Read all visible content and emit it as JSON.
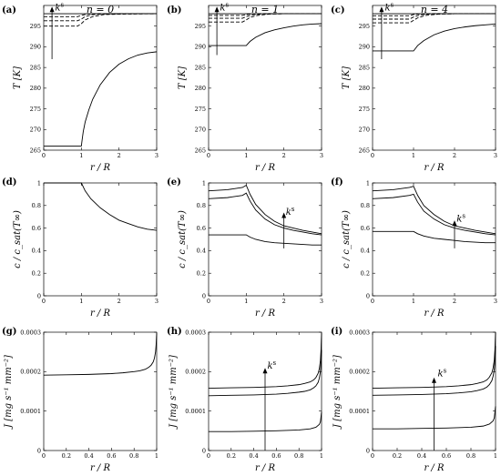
{
  "column_titles": [
    "n = 0",
    "n = 1",
    "n = 4"
  ],
  "row_ylabels": [
    "T [K]",
    "c / c_sat(T∞)",
    "J [mg s⁻¹ mm⁻²]"
  ],
  "row_xlabel": "r / R",
  "arrow_label": "k^s",
  "chart_data": [
    {
      "id": "a",
      "label": "(a)",
      "type": "line",
      "xlabel": "r / R",
      "ylabel": "T [K]",
      "xlim": [
        0,
        3
      ],
      "ylim": [
        265,
        300
      ],
      "xticks": [
        "0",
        "1",
        "2",
        "3"
      ],
      "yticks": [
        "265",
        "270",
        "275",
        "280",
        "285",
        "290",
        "295"
      ],
      "arrow": false,
      "series": [
        {
          "x": [
            0,
            1,
            1.02,
            1.05,
            1.1,
            1.2,
            1.3,
            1.5,
            1.75,
            2,
            2.25,
            2.5,
            2.75,
            3
          ],
          "y": [
            266,
            266,
            267.5,
            269.5,
            271.8,
            274.8,
            277.3,
            280.8,
            283.8,
            285.8,
            287.1,
            288.0,
            288.5,
            288.8
          ],
          "style": "solid"
        },
        {
          "x": [
            0,
            0.9,
            1,
            1.1,
            1.3,
            1.6,
            2,
            3
          ],
          "y": [
            295,
            295,
            295.6,
            296.5,
            297.3,
            297.8,
            297.9,
            298
          ],
          "style": "dashed"
        },
        {
          "x": [
            0,
            0.9,
            1,
            1.1,
            1.3,
            1.6,
            2,
            3
          ],
          "y": [
            296.3,
            296.3,
            296.7,
            297.3,
            297.8,
            297.95,
            298,
            298
          ],
          "style": "dashed"
        },
        {
          "x": [
            0,
            0.9,
            1,
            1.15,
            1.4,
            2,
            3
          ],
          "y": [
            297.3,
            297.3,
            297.6,
            297.9,
            298,
            298,
            298
          ],
          "style": "dashed"
        },
        {
          "x": [
            0,
            3
          ],
          "y": [
            298,
            298
          ],
          "style": "solid"
        }
      ]
    },
    {
      "id": "b",
      "label": "(b)",
      "type": "line",
      "xlabel": "r / R",
      "ylabel": "T [K]",
      "xlim": [
        0,
        3
      ],
      "ylim": [
        265,
        300
      ],
      "xticks": [
        "0",
        "1",
        "2",
        "3"
      ],
      "yticks": [
        "265",
        "270",
        "275",
        "280",
        "285",
        "290",
        "295"
      ],
      "arrow": false,
      "series": [
        {
          "x": [
            0,
            1,
            1.1,
            1.25,
            1.5,
            1.75,
            2,
            2.25,
            2.5,
            2.75,
            3
          ],
          "y": [
            290.3,
            290.3,
            291.3,
            292.3,
            293.4,
            294.1,
            294.6,
            295.0,
            295.3,
            295.5,
            295.6
          ],
          "style": "solid"
        },
        {
          "x": [
            0,
            0.9,
            1,
            1.1,
            1.3,
            1.6,
            2,
            3
          ],
          "y": [
            296,
            296,
            296.5,
            297.1,
            297.6,
            297.9,
            298,
            298
          ],
          "style": "dashed"
        },
        {
          "x": [
            0,
            0.9,
            1,
            1.15,
            1.4,
            2,
            3
          ],
          "y": [
            296.9,
            296.9,
            297.3,
            297.7,
            297.95,
            298,
            298
          ],
          "style": "dashed"
        },
        {
          "x": [
            0,
            0.9,
            1,
            1.15,
            1.4,
            2,
            3
          ],
          "y": [
            297.6,
            297.6,
            297.8,
            297.95,
            298,
            298,
            298
          ],
          "style": "dashed"
        },
        {
          "x": [
            0,
            3
          ],
          "y": [
            298,
            298
          ],
          "style": "solid"
        }
      ]
    },
    {
      "id": "c",
      "label": "(c)",
      "type": "line",
      "xlabel": "r / R",
      "ylabel": "T [K]",
      "xlim": [
        0,
        3
      ],
      "ylim": [
        265,
        300
      ],
      "xticks": [
        "0",
        "1",
        "2",
        "3"
      ],
      "yticks": [
        "265",
        "270",
        "275",
        "280",
        "285",
        "290",
        "295"
      ],
      "arrow": false,
      "series": [
        {
          "x": [
            0,
            1,
            1.1,
            1.25,
            1.5,
            1.75,
            2,
            2.25,
            2.5,
            2.75,
            3
          ],
          "y": [
            289,
            289,
            290.3,
            291.5,
            292.9,
            293.8,
            294.4,
            294.8,
            295.1,
            295.3,
            295.5
          ],
          "style": "solid"
        },
        {
          "x": [
            0,
            0.9,
            1,
            1.1,
            1.3,
            1.6,
            2,
            3
          ],
          "y": [
            295.8,
            295.8,
            296.4,
            297.0,
            297.6,
            297.9,
            298,
            298
          ],
          "style": "dashed"
        },
        {
          "x": [
            0,
            0.9,
            1,
            1.15,
            1.4,
            2,
            3
          ],
          "y": [
            296.7,
            296.7,
            297.2,
            297.7,
            297.95,
            298,
            298
          ],
          "style": "dashed"
        },
        {
          "x": [
            0,
            0.9,
            1,
            1.15,
            1.4,
            2,
            3
          ],
          "y": [
            297.5,
            297.5,
            297.8,
            297.95,
            298,
            298,
            298
          ],
          "style": "dashed"
        },
        {
          "x": [
            0,
            3
          ],
          "y": [
            298,
            298
          ],
          "style": "solid"
        }
      ]
    },
    {
      "id": "d",
      "label": "(d)",
      "type": "line",
      "xlabel": "r / R",
      "ylabel": "c / c_sat(T∞)",
      "xlim": [
        0,
        3
      ],
      "ylim": [
        0,
        1
      ],
      "xticks": [
        "0",
        "1",
        "2",
        "3"
      ],
      "yticks": [
        "0",
        "0.2",
        "0.4",
        "0.6",
        "0.8",
        "1"
      ],
      "arrow": false,
      "series": [
        {
          "x": [
            0,
            1,
            1.1,
            1.25,
            1.5,
            1.75,
            2,
            2.25,
            2.5,
            2.75,
            3
          ],
          "y": [
            1,
            1,
            0.93,
            0.86,
            0.78,
            0.72,
            0.67,
            0.64,
            0.61,
            0.59,
            0.58
          ],
          "style": "solid"
        }
      ]
    },
    {
      "id": "e",
      "label": "(e)",
      "type": "line",
      "xlabel": "r / R",
      "ylabel": "c / c_sat(T∞)",
      "xlim": [
        0,
        3
      ],
      "ylim": [
        0,
        1
      ],
      "xticks": [
        "0",
        "1",
        "2",
        "3"
      ],
      "yticks": [
        "0",
        "0.2",
        "0.4",
        "0.6",
        "0.8",
        "1"
      ],
      "arrow": false,
      "series": [
        {
          "x": [
            0,
            0.5,
            0.9,
            1,
            1.1,
            1.25,
            1.5,
            1.75,
            2,
            2.25,
            2.5,
            2.75,
            3
          ],
          "y": [
            0.54,
            0.54,
            0.54,
            0.54,
            0.52,
            0.5,
            0.48,
            0.47,
            0.465,
            0.46,
            0.455,
            0.45,
            0.45
          ],
          "style": "solid"
        },
        {
          "x": [
            0,
            0.5,
            0.9,
            1,
            1.1,
            1.25,
            1.5,
            1.75,
            2,
            2.25,
            2.5,
            2.75,
            3
          ],
          "y": [
            0.86,
            0.87,
            0.89,
            0.91,
            0.84,
            0.76,
            0.68,
            0.63,
            0.6,
            0.58,
            0.565,
            0.55,
            0.54
          ],
          "style": "solid"
        },
        {
          "x": [
            0,
            0.5,
            0.9,
            1,
            1.1,
            1.25,
            1.5,
            1.75,
            2,
            2.25,
            2.5,
            2.75,
            3
          ],
          "y": [
            0.93,
            0.94,
            0.96,
            0.98,
            0.9,
            0.81,
            0.72,
            0.66,
            0.62,
            0.6,
            0.58,
            0.565,
            0.55
          ],
          "style": "solid"
        }
      ]
    },
    {
      "id": "f",
      "label": "(f)",
      "type": "line",
      "xlabel": "r / R",
      "ylabel": "c / c_sat(T∞)",
      "xlim": [
        0,
        3
      ],
      "ylim": [
        0,
        1
      ],
      "xticks": [
        "0",
        "1",
        "2",
        "3"
      ],
      "yticks": [
        "0",
        "0.2",
        "0.4",
        "0.6",
        "0.8",
        "1"
      ],
      "arrow": false,
      "series": [
        {
          "x": [
            0,
            0.5,
            0.9,
            1,
            1.1,
            1.25,
            1.5,
            1.75,
            2,
            2.25,
            2.5,
            2.75,
            3
          ],
          "y": [
            0.57,
            0.57,
            0.57,
            0.57,
            0.55,
            0.53,
            0.51,
            0.5,
            0.49,
            0.48,
            0.475,
            0.47,
            0.47
          ],
          "style": "solid"
        },
        {
          "x": [
            0,
            0.5,
            0.9,
            1,
            1.1,
            1.25,
            1.5,
            1.75,
            2,
            2.25,
            2.5,
            2.75,
            3
          ],
          "y": [
            0.86,
            0.87,
            0.89,
            0.9,
            0.83,
            0.75,
            0.68,
            0.63,
            0.6,
            0.58,
            0.565,
            0.55,
            0.54
          ],
          "style": "solid"
        },
        {
          "x": [
            0,
            0.5,
            0.9,
            1,
            1.1,
            1.25,
            1.5,
            1.75,
            2,
            2.25,
            2.5,
            2.75,
            3
          ],
          "y": [
            0.93,
            0.94,
            0.96,
            0.97,
            0.89,
            0.8,
            0.72,
            0.66,
            0.62,
            0.6,
            0.58,
            0.565,
            0.55
          ],
          "style": "solid"
        }
      ]
    },
    {
      "id": "g",
      "label": "(g)",
      "type": "line",
      "xlabel": "r / R",
      "ylabel": "J [mg s⁻¹ mm⁻²]",
      "xlim": [
        0,
        1
      ],
      "ylim": [
        0,
        0.0003
      ],
      "xticks": [
        "0",
        "0.2",
        "0.4",
        "0.6",
        "0.8",
        "1"
      ],
      "yticks": [
        "0",
        "0.0001",
        "0.0002",
        "0.0003"
      ],
      "arrow": false,
      "series": [
        {
          "x": [
            0,
            0.2,
            0.4,
            0.6,
            0.7,
            0.8,
            0.85,
            0.9,
            0.93,
            0.95,
            0.97,
            0.98,
            0.99,
            0.995,
            1
          ],
          "y": [
            0.000191,
            0.000192,
            0.000193,
            0.000195,
            0.000197,
            0.0002,
            0.000202,
            0.000206,
            0.000211,
            0.000216,
            0.000225,
            0.000234,
            0.00025,
            0.000268,
            0.000297
          ],
          "style": "solid"
        }
      ]
    },
    {
      "id": "h",
      "label": "(h)",
      "type": "line",
      "xlabel": "r / R",
      "ylabel": "J [mg s⁻¹ mm⁻²]",
      "xlim": [
        0,
        1
      ],
      "ylim": [
        0,
        0.0003
      ],
      "xticks": [
        "0",
        "0.2",
        "0.4",
        "0.6",
        "0.8",
        "1"
      ],
      "yticks": [
        "0",
        "0.0001",
        "0.0002",
        "0.0003"
      ],
      "arrow": false,
      "series": [
        {
          "x": [
            0,
            0.2,
            0.4,
            0.6,
            0.8,
            0.9,
            0.95,
            0.98,
            0.99,
            1
          ],
          "y": [
            4.8e-05,
            4.8e-05,
            4.9e-05,
            5e-05,
            5.2e-05,
            5.5e-05,
            5.9e-05,
            6.6e-05,
            7.3e-05,
            9.8e-05
          ],
          "style": "solid"
        },
        {
          "x": [
            0,
            0.2,
            0.4,
            0.6,
            0.7,
            0.8,
            0.85,
            0.9,
            0.93,
            0.95,
            0.97,
            0.98,
            0.99,
            0.995,
            1
          ],
          "y": [
            0.000139,
            0.00014,
            0.000141,
            0.000143,
            0.000145,
            0.000148,
            0.00015,
            0.000154,
            0.000159,
            0.000164,
            0.000173,
            0.000183,
            0.0002,
            0.00022,
            0.000255
          ],
          "style": "solid"
        },
        {
          "x": [
            0,
            0.2,
            0.4,
            0.6,
            0.7,
            0.8,
            0.85,
            0.9,
            0.93,
            0.95,
            0.97,
            0.98,
            0.99,
            0.995,
            1
          ],
          "y": [
            0.000158,
            0.000159,
            0.00016,
            0.000162,
            0.000164,
            0.000167,
            0.00017,
            0.000174,
            0.000179,
            0.000185,
            0.000196,
            0.000207,
            0.000228,
            0.000254,
            0.000297
          ],
          "style": "solid"
        }
      ]
    },
    {
      "id": "i",
      "label": "(i)",
      "type": "line",
      "xlabel": "r / R",
      "ylabel": "J [mg s⁻¹ mm⁻²]",
      "xlim": [
        0,
        1
      ],
      "ylim": [
        0,
        0.0003
      ],
      "xticks": [
        "0",
        "0.2",
        "0.4",
        "0.6",
        "0.8",
        "1"
      ],
      "yticks": [
        "0",
        "0.0001",
        "0.0002",
        "0.0003"
      ],
      "arrow": false,
      "series": [
        {
          "x": [
            0,
            0.2,
            0.4,
            0.6,
            0.8,
            0.9,
            0.95,
            0.98,
            0.99,
            1
          ],
          "y": [
            5.5e-05,
            5.5e-05,
            5.6e-05,
            5.7e-05,
            5.9e-05,
            6.2e-05,
            6.7e-05,
            7.5e-05,
            8.3e-05,
            0.000112
          ],
          "style": "solid"
        },
        {
          "x": [
            0,
            0.2,
            0.4,
            0.6,
            0.7,
            0.8,
            0.85,
            0.9,
            0.93,
            0.95,
            0.97,
            0.98,
            0.99,
            0.995,
            1
          ],
          "y": [
            0.00014,
            0.000141,
            0.000142,
            0.000144,
            0.000146,
            0.000149,
            0.000152,
            0.000156,
            0.000161,
            0.000167,
            0.000177,
            0.000188,
            0.000206,
            0.000227,
            0.000265
          ],
          "style": "solid"
        },
        {
          "x": [
            0,
            0.2,
            0.4,
            0.6,
            0.7,
            0.8,
            0.85,
            0.9,
            0.93,
            0.95,
            0.97,
            0.98,
            0.99,
            0.995,
            1
          ],
          "y": [
            0.000158,
            0.000159,
            0.00016,
            0.000162,
            0.000164,
            0.000167,
            0.00017,
            0.000174,
            0.000179,
            0.000186,
            0.000197,
            0.000209,
            0.00023,
            0.000256,
            0.0003
          ],
          "style": "solid"
        }
      ]
    }
  ]
}
